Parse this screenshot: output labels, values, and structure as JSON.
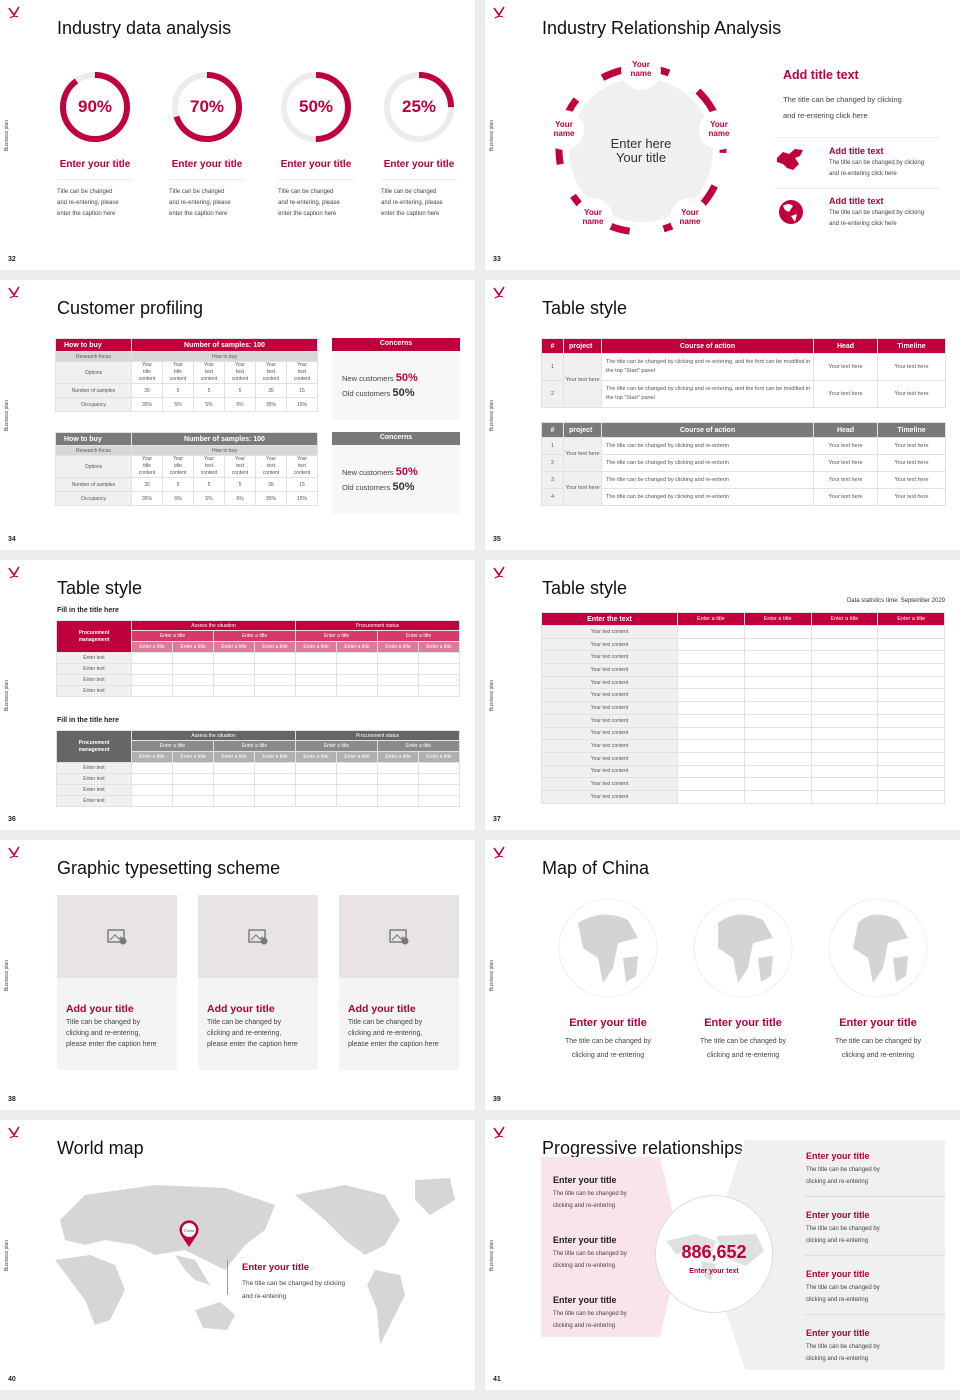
{
  "common": {
    "side_label": "Business plan",
    "brand_color": "#c0003c",
    "gray_color": "#7a7a7a"
  },
  "slides": {
    "s32": {
      "page": "32",
      "title": "Industry data analysis",
      "items": [
        {
          "percent": 90,
          "label": "90%",
          "title": "Enter your title",
          "caption": [
            "Title can be changed",
            "and re-entering, please",
            "enter the caption here"
          ]
        },
        {
          "percent": 70,
          "label": "70%",
          "title": "Enter your title",
          "caption": [
            "Title can be changed",
            "and re-entering, please",
            "enter the caption here"
          ]
        },
        {
          "percent": 50,
          "label": "50%",
          "title": "Enter your title",
          "caption": [
            "Title can be changed",
            "and re-entering, please",
            "enter the caption here"
          ]
        },
        {
          "percent": 25,
          "label": "25%",
          "title": "Enter your title",
          "caption": [
            "Title can be changed",
            "and re-entering, please",
            "enter the caption here"
          ]
        }
      ]
    },
    "s33": {
      "page": "33",
      "title": "Industry Relationship Analysis",
      "center": [
        "Enter here",
        "Your title"
      ],
      "nodes": [
        "Your name",
        "Your name",
        "Your name",
        "Your name",
        "Your name"
      ],
      "main": {
        "title": "Add title text",
        "text": [
          "The title can be changed by clicking",
          "and re-entering click here"
        ]
      },
      "items": [
        {
          "icon": "china-map-icon",
          "title": "Add title text",
          "text": [
            "The title can be changed by clicking",
            "and re-entering click here"
          ]
        },
        {
          "icon": "globe-icon",
          "title": "Add title text",
          "text": [
            "The title can be changed by clicking",
            "and re-entering click here"
          ]
        }
      ]
    },
    "s34": {
      "page": "34",
      "title": "Customer profiling",
      "tables": [
        {
          "style": "red",
          "h1": "How to buy",
          "h2": "Number of samples: 100",
          "focus_label": "Research focus",
          "focus_value": "How to buy",
          "rows": [
            [
              "Options",
              "Your title content",
              "Your title content",
              "Your text content",
              "Your text content",
              "Your text content",
              "Your text content"
            ],
            [
              "Number of samples",
              "35",
              "5",
              "5",
              "5",
              "35",
              "15"
            ],
            [
              "Occupancy",
              "35%",
              "5%",
              "5%",
              "5%",
              "35%",
              "15%"
            ]
          ],
          "concerns": {
            "title": "Concerns",
            "new_label": "New customers",
            "new_value": "50%",
            "old_label": "Old customers",
            "old_value": "50%"
          }
        },
        {
          "style": "gray",
          "h1": "How to buy",
          "h2": "Number of samples: 100",
          "focus_label": "Research focus",
          "focus_value": "How to buy",
          "rows": [
            [
              "Options",
              "Your title content",
              "Your title content",
              "Your text content",
              "Your text content",
              "Your text content",
              "Your text content"
            ],
            [
              "Number of samples",
              "35",
              "5",
              "5",
              "5",
              "35",
              "15"
            ],
            [
              "Occupancy",
              "35%",
              "6%",
              "5%",
              "6%",
              "35%",
              "15%"
            ]
          ],
          "concerns": {
            "title": "Concerns",
            "new_label": "New customers",
            "new_value": "50%",
            "old_label": "Old customers",
            "old_value": "50%"
          }
        }
      ]
    },
    "s35": {
      "page": "35",
      "title": "Table style",
      "headers": [
        "#",
        "project",
        "Course of action",
        "Head",
        "Timeline"
      ],
      "table1": {
        "project": "Your text here",
        "rows": [
          [
            "1",
            "The title can be changed by clicking and re-entering, and the font can be modified in the top \"Start\" panel",
            "Your text here",
            "Your text here"
          ],
          [
            "2",
            "The title can be changed by clicking and re-entering, and the font can be modified in the top \"Start\" panel",
            "Your text here",
            "Your text here"
          ]
        ]
      },
      "table2": {
        "projects": [
          "Your text here",
          "Your text here"
        ],
        "rows": [
          [
            "1",
            "The title can be changed by clicking and re-enterin",
            "Your text here",
            "Your text here"
          ],
          [
            "2",
            "The title can be changed by clicking and re-enterin",
            "Your text here",
            "Your text here"
          ],
          [
            "3",
            "The title can be changed by clicking and re-enterin",
            "Your text here",
            "Your text here"
          ],
          [
            "4",
            "The title can be changed by clicking and re-enterin",
            "Your text here",
            "Your text here"
          ]
        ]
      }
    },
    "s36": {
      "page": "36",
      "title": "Table style",
      "tables": [
        {
          "style": "red",
          "caption": "Fill in the title here",
          "corner": "Procurement management",
          "groups": [
            "Assess the situation",
            "Procurement status"
          ],
          "sub": [
            "Enter a title",
            "Enter a title",
            "Enter a title",
            "Enter a title"
          ],
          "cols": [
            "Enter a title",
            "Enter a title",
            "Enter a title",
            "Enter a title",
            "Enter a title",
            "Enter a title",
            "Enter a title",
            "Enter a title"
          ],
          "rows": [
            "Enter text",
            "Enter text",
            "Enter text",
            "Enter text"
          ]
        },
        {
          "style": "gray",
          "caption": "Fill in the title here",
          "corner": "Procurement management",
          "groups": [
            "Assess the situation",
            "Procurement status"
          ],
          "sub": [
            "Enter a title",
            "Enter a title",
            "Enter a title",
            "Enter a title"
          ],
          "cols": [
            "Enter a title",
            "Enter a title",
            "Enter a title",
            "Enter a title",
            "Enter a title",
            "Enter a title",
            "Enter a title",
            "Enter a title"
          ],
          "rows": [
            "Enter text",
            "Enter text",
            "Enter text",
            "Enter text"
          ]
        }
      ]
    },
    "s37": {
      "page": "37",
      "title": "Table style",
      "date_note": "Data statistics time: September 2029",
      "headers": [
        "Enter the text",
        "Enter a title",
        "Enter a title",
        "Enter a title",
        "Enter a title"
      ],
      "rows": [
        "Your text content",
        "Your text content",
        "Your text content",
        "Your text content",
        "Your text content",
        "Your text content",
        "Your text content",
        "Your text content",
        "Your text content",
        "Your text content",
        "Your text content",
        "Your text content",
        "Your text content",
        "Your text content"
      ]
    },
    "s38": {
      "page": "38",
      "title": "Graphic typesetting scheme",
      "cards": [
        {
          "title": "Add your title",
          "caption": [
            "Title can be changed by",
            "clicking and re-entering,",
            "please enter the caption here"
          ]
        },
        {
          "title": "Add your title",
          "caption": [
            "Title can be changed by",
            "clicking and re-entering,",
            "please enter the caption here"
          ]
        },
        {
          "title": "Add your title",
          "caption": [
            "Title can be changed by",
            "clicking and re-entering,",
            "please enter the caption here"
          ]
        }
      ]
    },
    "s39": {
      "page": "39",
      "title": "Map of China",
      "items": [
        {
          "title": "Enter your title",
          "caption": [
            "The title can be changed by",
            "clicking and re-entering"
          ]
        },
        {
          "title": "Enter your title",
          "caption": [
            "The title can be changed by",
            "clicking and re-entering"
          ]
        },
        {
          "title": "Enter your title",
          "caption": [
            "The title can be changed by",
            "clicking and re-entering"
          ]
        }
      ]
    },
    "s40": {
      "page": "40",
      "title": "World map",
      "pin_label": "China",
      "callout": {
        "title": "Enter your title",
        "text": [
          "The title can be changed by clicking",
          "and re-entering"
        ]
      }
    },
    "s41": {
      "page": "41",
      "title": "Progressive relationships",
      "number": "886,652",
      "number_label": "Enter your text",
      "left": [
        {
          "title": "Enter your title",
          "text": [
            "The title can be changed by",
            "clicking and re-entering"
          ]
        },
        {
          "title": "Enter your title",
          "text": [
            "The title can be changed by",
            "clicking and re-entering"
          ]
        },
        {
          "title": "Enter your title",
          "text": [
            "The title can be changed by",
            "clicking and re-entering"
          ]
        }
      ],
      "right": [
        {
          "title": "Enter your title",
          "text": [
            "The title can be changed by",
            "clicking and re-entering"
          ]
        },
        {
          "title": "Enter your title",
          "text": [
            "The title can be changed by",
            "clicking and re-entering"
          ]
        },
        {
          "title": "Enter your title",
          "text": [
            "The title can be changed by",
            "clicking and re-entering"
          ]
        },
        {
          "title": "Enter your title",
          "text": [
            "The title can be changed by",
            "clicking and re-entering"
          ]
        }
      ]
    }
  }
}
